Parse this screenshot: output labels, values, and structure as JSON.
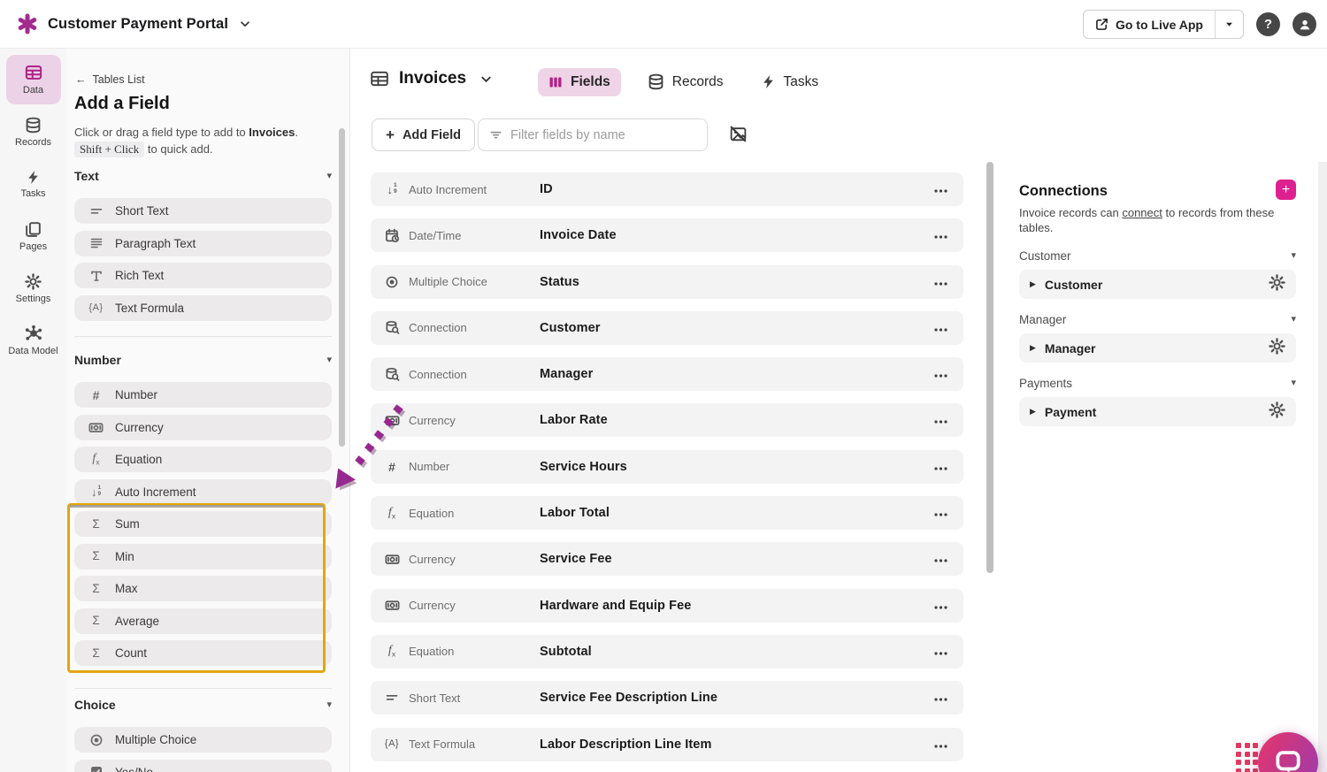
{
  "colors": {
    "brand_magenta": "#ad2186",
    "accent_pink": "#de2190",
    "active_tab_bg": "#efd3e7",
    "highlight_gold": "#e3a511",
    "arrow_purple": "#97288f",
    "chat_gradient_start": "#e0356f",
    "chat_gradient_end": "#a43aa6"
  },
  "topbar": {
    "app_title": "Customer Payment Portal",
    "live_app_label": "Go to Live App",
    "help_label": "?"
  },
  "nav_rail": {
    "items": [
      {
        "label": "Data",
        "icon": "table",
        "active": true
      },
      {
        "label": "Records",
        "icon": "database",
        "active": false
      },
      {
        "label": "Tasks",
        "icon": "bolt",
        "active": false
      },
      {
        "label": "Pages",
        "icon": "pages",
        "active": false
      },
      {
        "label": "Settings",
        "icon": "gear",
        "active": false
      },
      {
        "label": "Data Model",
        "icon": "data-model",
        "active": false
      }
    ]
  },
  "left_panel": {
    "back_label": "Tables List",
    "title": "Add a Field",
    "desc_prefix": "Click or drag a field type to add to ",
    "desc_table": "Invoices",
    "desc_suffix": ".",
    "kbd": "Shift + Click",
    "kbd_suffix": " to quick add.",
    "sections": [
      {
        "label": "Text",
        "items": [
          {
            "label": "Short Text",
            "icon": "short-text"
          },
          {
            "label": "Paragraph Text",
            "icon": "paragraph-text"
          },
          {
            "label": "Rich Text",
            "icon": "rich-text"
          },
          {
            "label": "Text Formula",
            "icon": "text-formula"
          }
        ]
      },
      {
        "label": "Number",
        "items": [
          {
            "label": "Number",
            "icon": "number"
          },
          {
            "label": "Currency",
            "icon": "currency"
          },
          {
            "label": "Equation",
            "icon": "equation"
          },
          {
            "label": "Auto Increment",
            "icon": "auto-increment"
          },
          {
            "label": "Sum",
            "icon": "sigma",
            "highlighted": true
          },
          {
            "label": "Min",
            "icon": "sigma",
            "highlighted": true
          },
          {
            "label": "Max",
            "icon": "sigma",
            "highlighted": true
          },
          {
            "label": "Average",
            "icon": "sigma",
            "highlighted": true
          },
          {
            "label": "Count",
            "icon": "sigma",
            "highlighted": true
          }
        ]
      },
      {
        "label": "Choice",
        "items": [
          {
            "label": "Multiple Choice",
            "icon": "multiple-choice"
          },
          {
            "label": "Yes/No",
            "icon": "yes-no"
          }
        ]
      }
    ]
  },
  "main": {
    "table_name": "Invoices",
    "tabs": [
      {
        "label": "Fields",
        "icon": "columns",
        "active": true
      },
      {
        "label": "Records",
        "icon": "database",
        "active": false
      },
      {
        "label": "Tasks",
        "icon": "bolt",
        "active": false
      }
    ],
    "add_field_label": "Add Field",
    "filter_placeholder": "Filter fields by name",
    "fields": [
      {
        "type": "Auto Increment",
        "icon": "auto-increment",
        "name": "ID"
      },
      {
        "type": "Date/Time",
        "icon": "datetime",
        "name": "Invoice Date"
      },
      {
        "type": "Multiple Choice",
        "icon": "multiple-choice",
        "name": "Status"
      },
      {
        "type": "Connection",
        "icon": "connection",
        "name": "Customer"
      },
      {
        "type": "Connection",
        "icon": "connection",
        "name": "Manager"
      },
      {
        "type": "Currency",
        "icon": "currency",
        "name": "Labor Rate"
      },
      {
        "type": "Number",
        "icon": "number",
        "name": "Service Hours"
      },
      {
        "type": "Equation",
        "icon": "equation",
        "name": "Labor Total"
      },
      {
        "type": "Currency",
        "icon": "currency",
        "name": "Service Fee"
      },
      {
        "type": "Currency",
        "icon": "currency",
        "name": "Hardware and Equip Fee"
      },
      {
        "type": "Equation",
        "icon": "equation",
        "name": "Subtotal"
      },
      {
        "type": "Short Text",
        "icon": "short-text",
        "name": "Service Fee Description Line"
      },
      {
        "type": "Text Formula",
        "icon": "text-formula",
        "name": "Labor Description Line Item"
      }
    ]
  },
  "connections_panel": {
    "title": "Connections",
    "desc_prefix": "Invoice records can ",
    "desc_link": "connect",
    "desc_suffix": " to records from these tables.",
    "groups": [
      {
        "label": "Customer",
        "item": "Customer"
      },
      {
        "label": "Manager",
        "item": "Manager"
      },
      {
        "label": "Payments",
        "item": "Payment"
      }
    ]
  }
}
